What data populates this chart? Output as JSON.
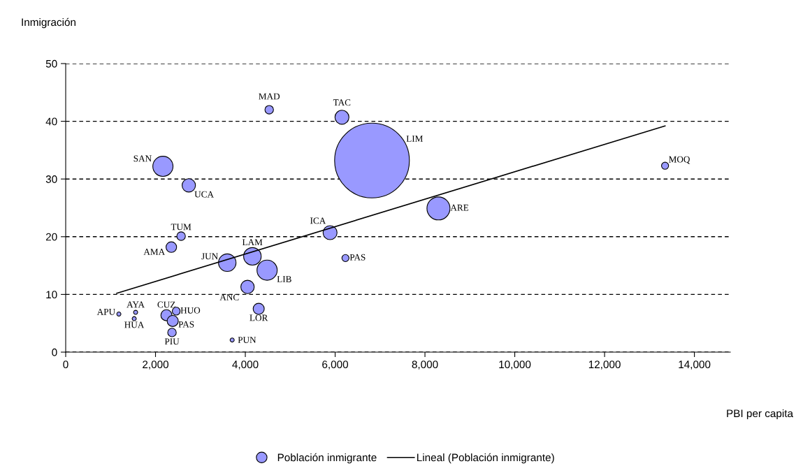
{
  "chart_data": {
    "type": "bubble",
    "ylabel": "Inmigración",
    "xlabel": "PBI per capita",
    "xlim": [
      0,
      14800
    ],
    "ylim": [
      0,
      50
    ],
    "xticks": [
      0,
      {
        "value": 2000,
        "label": "2,000"
      },
      {
        "value": 4000,
        "label": "4,000"
      },
      {
        "value": 6000,
        "label": "6,000"
      },
      {
        "value": 8000,
        "label": "8,000"
      },
      {
        "value": 10000,
        "label": "10,000"
      },
      {
        "value": 12000,
        "label": "12,000"
      },
      {
        "value": 14000,
        "label": "14,000"
      }
    ],
    "yticks": [
      0,
      10,
      20,
      30,
      40,
      50
    ],
    "grid": "y",
    "legend": "bottom",
    "series": [
      {
        "name": "Población inmigrante",
        "color": "#9999ff",
        "x": [
          4532,
          6152,
          2165,
          2741,
          2570,
          2352,
          3598,
          4158,
          4485,
          4049,
          5887,
          6230,
          6821,
          8301,
          13347,
          1184,
          1557,
          1526,
          2243,
          2461,
          2383,
          2367,
          3707,
          4298
        ],
        "values": [
          42.0,
          40.7,
          32.2,
          28.9,
          20.1,
          18.2,
          15.5,
          16.6,
          14.2,
          11.3,
          20.7,
          16.3,
          33.2,
          24.9,
          32.3,
          6.6,
          6.9,
          5.8,
          6.4,
          7.1,
          5.4,
          3.4,
          2.1,
          7.5
        ],
        "sizes": [
          0.013,
          0.035,
          0.073,
          0.032,
          0.013,
          0.02,
          0.055,
          0.055,
          0.073,
          0.032,
          0.035,
          0.009,
          1,
          0.095,
          0.009,
          0.003,
          0.003,
          0.003,
          0.022,
          0.011,
          0.022,
          0.013,
          0.003,
          0.022
        ]
      },
      {
        "name": "Lineal (Población inmigrante)",
        "type": "line",
        "color": "#000000",
        "line_style": "solid",
        "x": [
          1137,
          13347
        ],
        "values": [
          10.2,
          39.2
        ]
      }
    ],
    "annotations": [
      {
        "text": "MAD",
        "x": 4532,
        "y": 42.0
      },
      {
        "text": "TAC",
        "x": 6152,
        "y": 40.7
      },
      {
        "text": "SAN",
        "x": 2165,
        "y": 32.2
      },
      {
        "text": "UCA",
        "x": 2741,
        "y": 28.9
      },
      {
        "text": "TUM",
        "x": 2570,
        "y": 20.1
      },
      {
        "text": "AMA",
        "x": 2352,
        "y": 18.2
      },
      {
        "text": "JUN",
        "x": 3598,
        "y": 15.5
      },
      {
        "text": "LAM",
        "x": 4158,
        "y": 16.6
      },
      {
        "text": "LIB",
        "x": 4485,
        "y": 14.2
      },
      {
        "text": "ANC",
        "x": 4049,
        "y": 11.3
      },
      {
        "text": "ICA",
        "x": 5887,
        "y": 20.7
      },
      {
        "text": "PAS",
        "x": 6230,
        "y": 16.3
      },
      {
        "text": "LIM",
        "x": 7520,
        "y": 36.6
      },
      {
        "text": "ARE",
        "x": 8301,
        "y": 24.9
      },
      {
        "text": "MOQ",
        "x": 13347,
        "y": 32.3
      },
      {
        "text": "APU",
        "x": 1184,
        "y": 6.6
      },
      {
        "text": "AYA",
        "x": 1557,
        "y": 6.9
      },
      {
        "text": "HUA",
        "x": 1526,
        "y": 5.8
      },
      {
        "text": "CUZ",
        "x": 2243,
        "y": 6.4
      },
      {
        "text": "HUO",
        "x": 2461,
        "y": 7.1
      },
      {
        "text": "PAS",
        "x": 2383,
        "y": 5.4
      },
      {
        "text": "PIU",
        "x": 2367,
        "y": 3.4
      },
      {
        "text": "PUN",
        "x": 3707,
        "y": 2.1
      },
      {
        "text": "LOR",
        "x": 4298,
        "y": 7.5
      }
    ]
  }
}
